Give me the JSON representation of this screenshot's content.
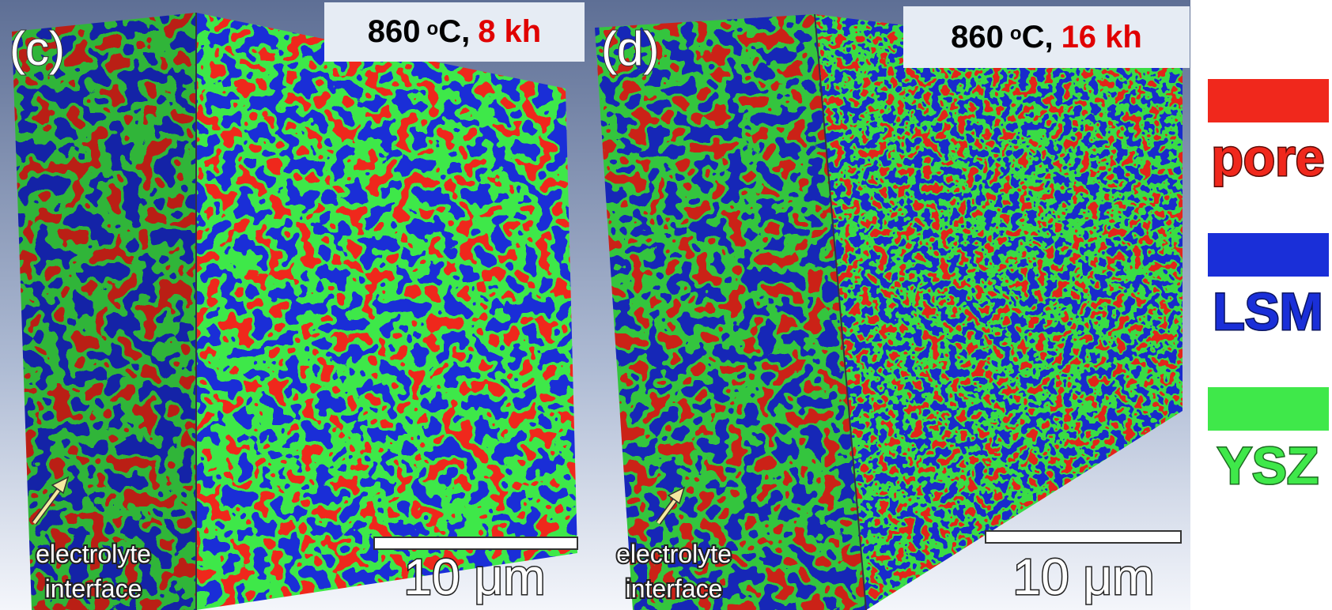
{
  "panels": [
    {
      "label": "(c)",
      "caption": {
        "temperature": "860",
        "degree": "o",
        "unit": "C,",
        "duration": "8 kh"
      },
      "scale_bar": "10 μm",
      "annotation": [
        "electrolyte",
        "interface"
      ]
    },
    {
      "label": "(d)",
      "caption": {
        "temperature": "860",
        "degree": "o",
        "unit": "C,",
        "duration": "16 kh"
      },
      "scale_bar": "10 μm",
      "annotation": [
        "electrolyte",
        "interface"
      ]
    }
  ],
  "legend": [
    {
      "name": "pore",
      "color": "#f0281c"
    },
    {
      "name": "LSM",
      "color": "#1a2fd8"
    },
    {
      "name": "YSZ",
      "color": "#3fe84a"
    }
  ]
}
